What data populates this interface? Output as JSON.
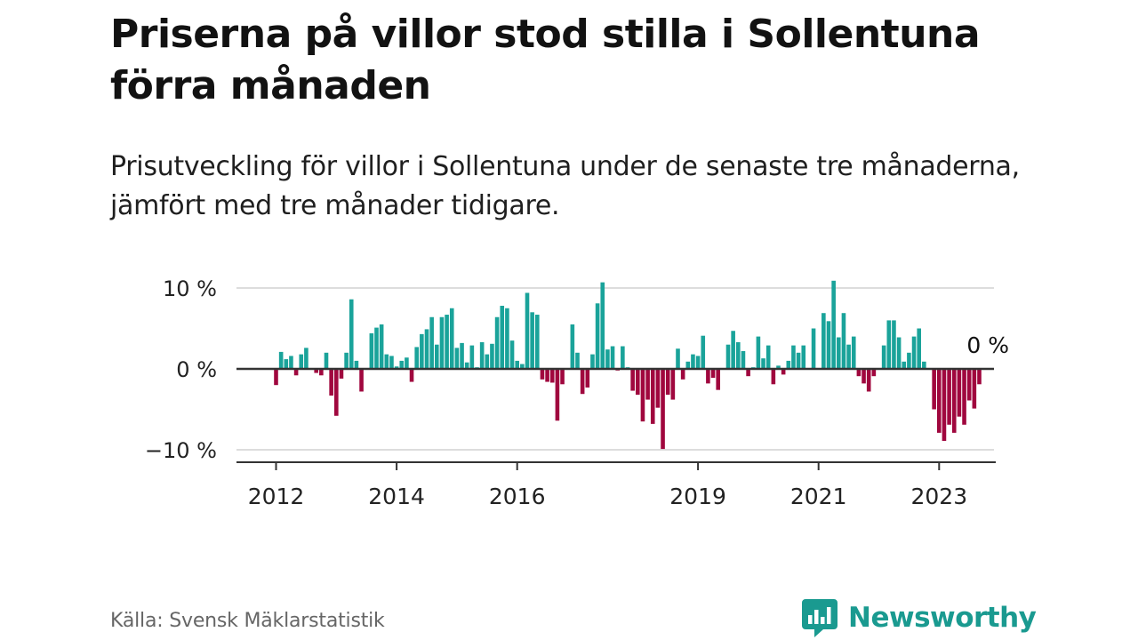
{
  "title": "Priserna på villor stod stilla i Sollentuna förra månaden",
  "subtitle": "Prisutveckling för villor i Sollentuna under de senaste tre månaderna, jämfört med tre månader tidigare.",
  "source": "Källa: Svensk Mäklarstatistik",
  "logo": {
    "text": "Newsworthy",
    "icon": "newsworthy-logo-icon",
    "color": "#1a9a90"
  },
  "colors": {
    "positive": "#1aa39a",
    "negative": "#a0073e",
    "axis": "#333333",
    "grid": "#dddddd",
    "text": "#222222"
  },
  "chart_data": {
    "type": "bar",
    "title": "",
    "xlabel": "",
    "ylabel": "",
    "unit": "%",
    "ylim": [
      -11,
      11
    ],
    "yticks": [
      {
        "value": 10,
        "label": "10 %"
      },
      {
        "value": 0,
        "label": "0 %"
      },
      {
        "value": -10,
        "label": "−10 %"
      }
    ],
    "start": {
      "year": 2012,
      "month": 1
    },
    "xticks": [
      {
        "label": "2012",
        "index": 0
      },
      {
        "label": "2014",
        "index": 24
      },
      {
        "label": "2016",
        "index": 48
      },
      {
        "label": "2019",
        "index": 84
      },
      {
        "label": "2021",
        "index": 108
      },
      {
        "label": "2023",
        "index": 132
      }
    ],
    "last_value_label": "0 %",
    "values": [
      -2,
      2.1,
      1.2,
      1.6,
      -0.8,
      1.8,
      2.6,
      0,
      -0.5,
      -0.8,
      2,
      -3.3,
      -5.8,
      -1.2,
      2.0,
      8.6,
      1.0,
      -2.8,
      0,
      4.4,
      5.1,
      5.5,
      1.8,
      1.6,
      0.3,
      1.0,
      1.4,
      -1.6,
      2.7,
      4.3,
      4.9,
      6.4,
      3.0,
      6.4,
      6.7,
      7.5,
      2.6,
      3.2,
      0.8,
      2.9,
      0.2,
      3.3,
      1.8,
      3.1,
      6.4,
      7.8,
      7.5,
      3.5,
      1.0,
      0.6,
      9.4,
      7.0,
      6.7,
      -1.3,
      -1.6,
      -1.7,
      -6.4,
      -1.9,
      0,
      5.5,
      2.0,
      -3.1,
      -2.3,
      1.8,
      8.1,
      10.7,
      2.4,
      2.8,
      -0.2,
      2.8,
      0.2,
      -2.7,
      -3.2,
      -6.5,
      -3.8,
      -6.8,
      -4.8,
      -9.9,
      -3.2,
      -3.8,
      2.5,
      -1.3,
      0.9,
      1.8,
      1.6,
      4.1,
      -1.8,
      -1.1,
      -2.6,
      0.1,
      3.0,
      4.7,
      3.3,
      2.2,
      -0.9,
      0.2,
      4.0,
      1.3,
      2.9,
      -1.9,
      0.4,
      -0.7,
      1.0,
      2.9,
      2.0,
      2.9,
      0,
      5.0,
      0,
      6.9,
      5.9,
      10.9,
      3.9,
      6.9,
      3.0,
      4.0,
      -0.9,
      -1.8,
      -2.8,
      -0.9,
      0,
      2.9,
      6.0,
      6.0,
      3.9,
      0.9,
      2.0,
      4.0,
      5.0,
      0.9,
      0,
      -5.0,
      -7.9,
      -8.9,
      -6.9,
      -7.9,
      -5.9,
      -6.9,
      -3.9,
      -4.9,
      -1.9,
      0
    ]
  }
}
